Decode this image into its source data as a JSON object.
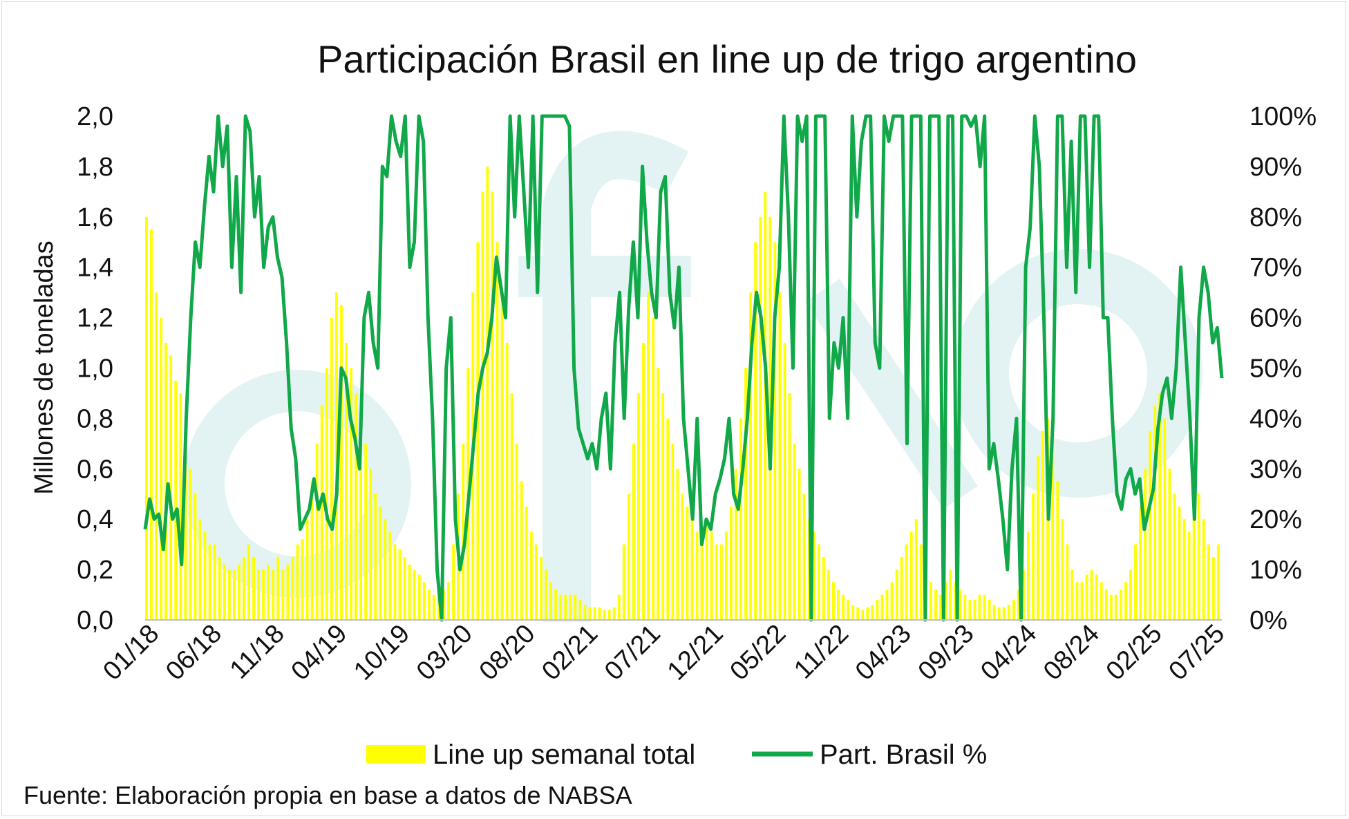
{
  "chart_data": {
    "type": "bar+line",
    "title": "Participación Brasil en line up de trigo argentino",
    "ylabel": "Millones de toneladas",
    "ylim": [
      0,
      2.0
    ],
    "y2lim": [
      0,
      100
    ],
    "y_ticks": [
      "0,0",
      "0,2",
      "0,4",
      "0,6",
      "0,8",
      "1,0",
      "1,2",
      "1,4",
      "1,6",
      "1,8",
      "2,0"
    ],
    "y2_ticks": [
      "0%",
      "10%",
      "20%",
      "30%",
      "40%",
      "50%",
      "60%",
      "70%",
      "80%",
      "90%",
      "100%"
    ],
    "x_ticks": [
      "01/18",
      "06/18",
      "11/18",
      "04/19",
      "10/19",
      "03/20",
      "08/20",
      "02/21",
      "07/21",
      "12/21",
      "05/22",
      "11/22",
      "04/23",
      "09/23",
      "04/24",
      "08/24",
      "02/25",
      "07/25"
    ],
    "source": "Fuente: Elaboración propia en base a datos de NABSA",
    "colors": {
      "bars": "#ffff00",
      "line": "#11a84a",
      "watermark": "#e3f3f4"
    },
    "series": [
      {
        "name": "Line up semanal total",
        "type": "bar",
        "axis": "left",
        "values": [
          1.6,
          1.55,
          1.3,
          1.2,
          1.1,
          1.05,
          0.95,
          0.9,
          0.75,
          0.6,
          0.5,
          0.4,
          0.35,
          0.3,
          0.3,
          0.25,
          0.22,
          0.2,
          0.2,
          0.22,
          0.25,
          0.3,
          0.25,
          0.2,
          0.2,
          0.22,
          0.2,
          0.25,
          0.2,
          0.22,
          0.25,
          0.3,
          0.32,
          0.4,
          0.55,
          0.7,
          0.85,
          1.0,
          1.2,
          1.3,
          1.25,
          1.1,
          1.0,
          0.9,
          0.8,
          0.7,
          0.6,
          0.5,
          0.45,
          0.4,
          0.35,
          0.3,
          0.28,
          0.25,
          0.22,
          0.2,
          0.18,
          0.15,
          0.12,
          0.1,
          0.1,
          0.12,
          0.15,
          0.3,
          0.5,
          0.7,
          1.0,
          1.3,
          1.5,
          1.7,
          1.8,
          1.7,
          1.5,
          1.3,
          1.1,
          0.9,
          0.7,
          0.55,
          0.45,
          0.35,
          0.3,
          0.25,
          0.2,
          0.15,
          0.12,
          0.1,
          0.1,
          0.1,
          0.1,
          0.08,
          0.06,
          0.05,
          0.05,
          0.05,
          0.04,
          0.04,
          0.05,
          0.1,
          0.3,
          0.5,
          0.7,
          0.9,
          1.1,
          1.3,
          1.2,
          1.0,
          0.9,
          0.8,
          0.7,
          0.6,
          0.5,
          0.45,
          0.4,
          0.35,
          0.35,
          0.4,
          0.35,
          0.3,
          0.3,
          0.35,
          0.45,
          0.6,
          0.8,
          1.0,
          1.3,
          1.5,
          1.6,
          1.7,
          1.6,
          1.5,
          1.3,
          1.1,
          0.9,
          0.7,
          0.6,
          0.5,
          0.4,
          0.35,
          0.3,
          0.25,
          0.2,
          0.15,
          0.12,
          0.1,
          0.08,
          0.06,
          0.05,
          0.04,
          0.05,
          0.06,
          0.08,
          0.1,
          0.12,
          0.15,
          0.2,
          0.25,
          0.3,
          0.35,
          0.4,
          0.3,
          0.2,
          0.15,
          0.12,
          0.1,
          0.15,
          0.2,
          0.15,
          0.12,
          0.1,
          0.08,
          0.08,
          0.1,
          0.1,
          0.08,
          0.06,
          0.05,
          0.05,
          0.06,
          0.08,
          0.12,
          0.2,
          0.35,
          0.5,
          0.65,
          0.75,
          0.8,
          0.7,
          0.55,
          0.4,
          0.3,
          0.2,
          0.15,
          0.15,
          0.18,
          0.2,
          0.18,
          0.15,
          0.12,
          0.1,
          0.1,
          0.12,
          0.15,
          0.2,
          0.3,
          0.45,
          0.6,
          0.75,
          0.85,
          0.9,
          0.8,
          0.6,
          0.5,
          0.45,
          0.4,
          0.35,
          0.45,
          0.5,
          0.4,
          0.3,
          0.25,
          0.3
        ]
      },
      {
        "name": "Part. Brasil %",
        "type": "line",
        "axis": "right",
        "values": [
          18,
          24,
          20,
          21,
          14,
          27,
          20,
          22,
          11,
          40,
          60,
          75,
          70,
          82,
          92,
          85,
          100,
          90,
          98,
          70,
          88,
          65,
          100,
          97,
          80,
          88,
          70,
          78,
          80,
          72,
          68,
          55,
          38,
          32,
          18,
          20,
          22,
          28,
          22,
          25,
          20,
          18,
          25,
          50,
          48,
          40,
          36,
          30,
          60,
          65,
          55,
          50,
          90,
          88,
          100,
          95,
          92,
          100,
          70,
          75,
          100,
          95,
          60,
          40,
          10,
          0,
          50,
          60,
          20,
          10,
          15,
          25,
          35,
          45,
          50,
          53,
          60,
          72,
          66,
          60,
          100,
          80,
          100,
          85,
          70,
          100,
          65,
          100,
          100,
          100,
          100,
          100,
          100,
          98,
          50,
          38,
          35,
          32,
          35,
          30,
          40,
          45,
          30,
          55,
          65,
          40,
          62,
          75,
          60,
          90,
          75,
          65,
          60,
          85,
          88,
          65,
          58,
          70,
          40,
          30,
          20,
          40,
          15,
          20,
          18,
          25,
          28,
          32,
          40,
          25,
          22,
          30,
          40,
          55,
          65,
          60,
          50,
          30,
          60,
          70,
          100,
          80,
          50,
          100,
          95,
          100,
          0,
          100,
          100,
          100,
          40,
          55,
          50,
          60,
          40,
          100,
          80,
          95,
          100,
          100,
          55,
          50,
          100,
          95,
          100,
          100,
          100,
          35,
          100,
          100,
          100,
          0,
          100,
          100,
          100,
          0,
          100,
          100,
          0,
          100,
          100,
          98,
          100,
          90,
          100,
          30,
          35,
          28,
          20,
          10,
          30,
          40,
          0,
          70,
          78,
          100,
          90,
          60,
          20,
          40,
          100,
          100,
          70,
          95,
          65,
          100,
          100,
          70,
          100,
          100,
          60,
          60,
          40,
          25,
          22,
          28,
          30,
          25,
          28,
          18,
          22,
          26,
          38,
          45,
          48,
          40,
          50,
          70,
          55,
          40,
          20,
          60,
          70,
          65,
          55,
          58,
          48
        ]
      }
    ]
  }
}
